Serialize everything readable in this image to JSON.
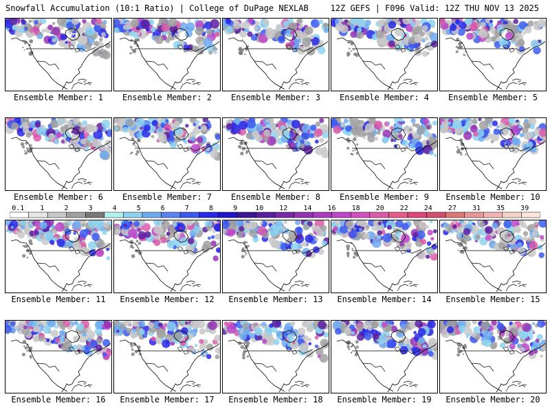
{
  "header": {
    "left": "Snowfall Accumulation (10:1 Ratio) | College of DuPage NEXLAB",
    "right": "12Z GEFS | F096 Valid: 12Z THU NOV 13 2025"
  },
  "members": [
    {
      "label": "Ensemble Member: 1"
    },
    {
      "label": "Ensemble Member: 2"
    },
    {
      "label": "Ensemble Member: 3"
    },
    {
      "label": "Ensemble Member: 4"
    },
    {
      "label": "Ensemble Member: 5"
    },
    {
      "label": "Ensemble Member: 6"
    },
    {
      "label": "Ensemble Member: 7"
    },
    {
      "label": "Ensemble Member: 8"
    },
    {
      "label": "Ensemble Member: 9"
    },
    {
      "label": "Ensemble Member: 10"
    },
    {
      "label": "Ensemble Member: 11"
    },
    {
      "label": "Ensemble Member: 12"
    },
    {
      "label": "Ensemble Member: 13"
    },
    {
      "label": "Ensemble Member: 14"
    },
    {
      "label": "Ensemble Member: 15"
    },
    {
      "label": "Ensemble Member: 16"
    },
    {
      "label": "Ensemble Member: 17"
    },
    {
      "label": "Ensemble Member: 18"
    },
    {
      "label": "Ensemble Member: 19"
    },
    {
      "label": "Ensemble Member: 20"
    }
  ],
  "legend": {
    "labels": [
      "0.1",
      "1",
      "2",
      "3",
      "4",
      "5",
      "6",
      "7",
      "8",
      "9",
      "10",
      "12",
      "14",
      "16",
      "18",
      "20",
      "22",
      "24",
      "27",
      "31",
      "35",
      "39"
    ],
    "colors": [
      "#ffffff",
      "#e6e6e6",
      "#c8c8c8",
      "#a0a0a0",
      "#787878",
      "#b4f0f0",
      "#8cd2f0",
      "#6eaaf0",
      "#5a82f0",
      "#3c5af0",
      "#2828e6",
      "#1e14c8",
      "#3c1496",
      "#5a1ea0",
      "#7828aa",
      "#9632b4",
      "#aa3cbe",
      "#be46c8",
      "#d250be",
      "#dc5aaa",
      "#e65a8c",
      "#dc4678",
      "#d2506e",
      "#dc7878",
      "#e69696",
      "#f0b4b4",
      "#f5d2c8",
      "#fae6dc"
    ]
  }
}
